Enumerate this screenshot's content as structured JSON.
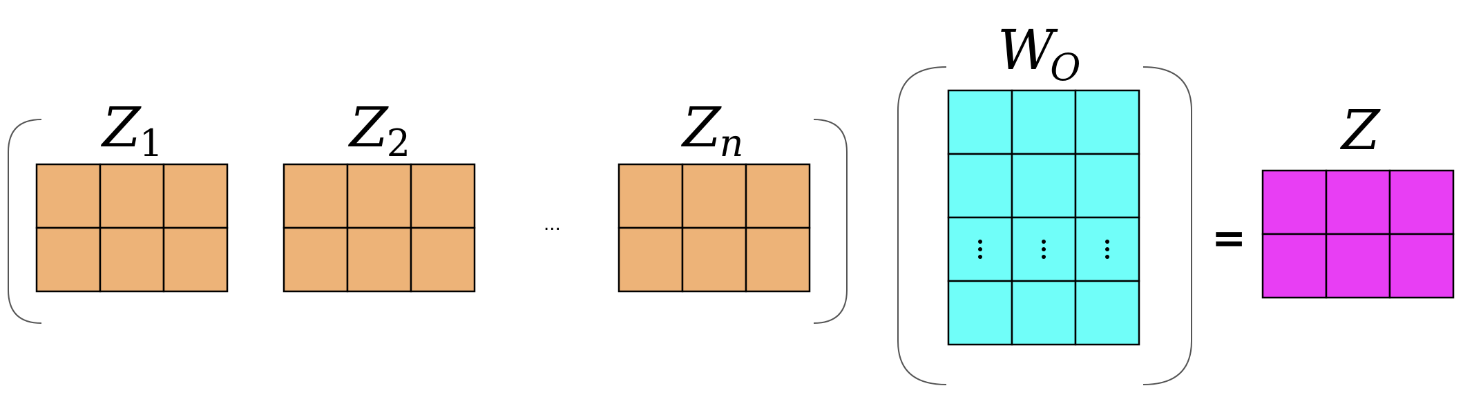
{
  "colors": {
    "z_fill": "#EDB378",
    "wo_fill": "#70FEF9",
    "z_out_fill": "#E83EF4",
    "grid_stroke": "#000000",
    "bracket_stroke": "#555555"
  },
  "matrices": {
    "z1": {
      "name": "Z",
      "sub": "1",
      "rows": 2,
      "cols": 3
    },
    "z2": {
      "name": "Z",
      "sub": "2",
      "rows": 2,
      "cols": 3
    },
    "zn": {
      "name": "Z",
      "sub": "n",
      "rows": 2,
      "cols": 3
    },
    "wo": {
      "name": "W",
      "sub": "O",
      "rows": 4,
      "cols": 3,
      "ellipsis_row": 2
    },
    "z_out": {
      "name": "Z",
      "sub": "",
      "rows": 2,
      "cols": 3
    }
  },
  "between_ellipsis": "...",
  "equals_sign": "="
}
